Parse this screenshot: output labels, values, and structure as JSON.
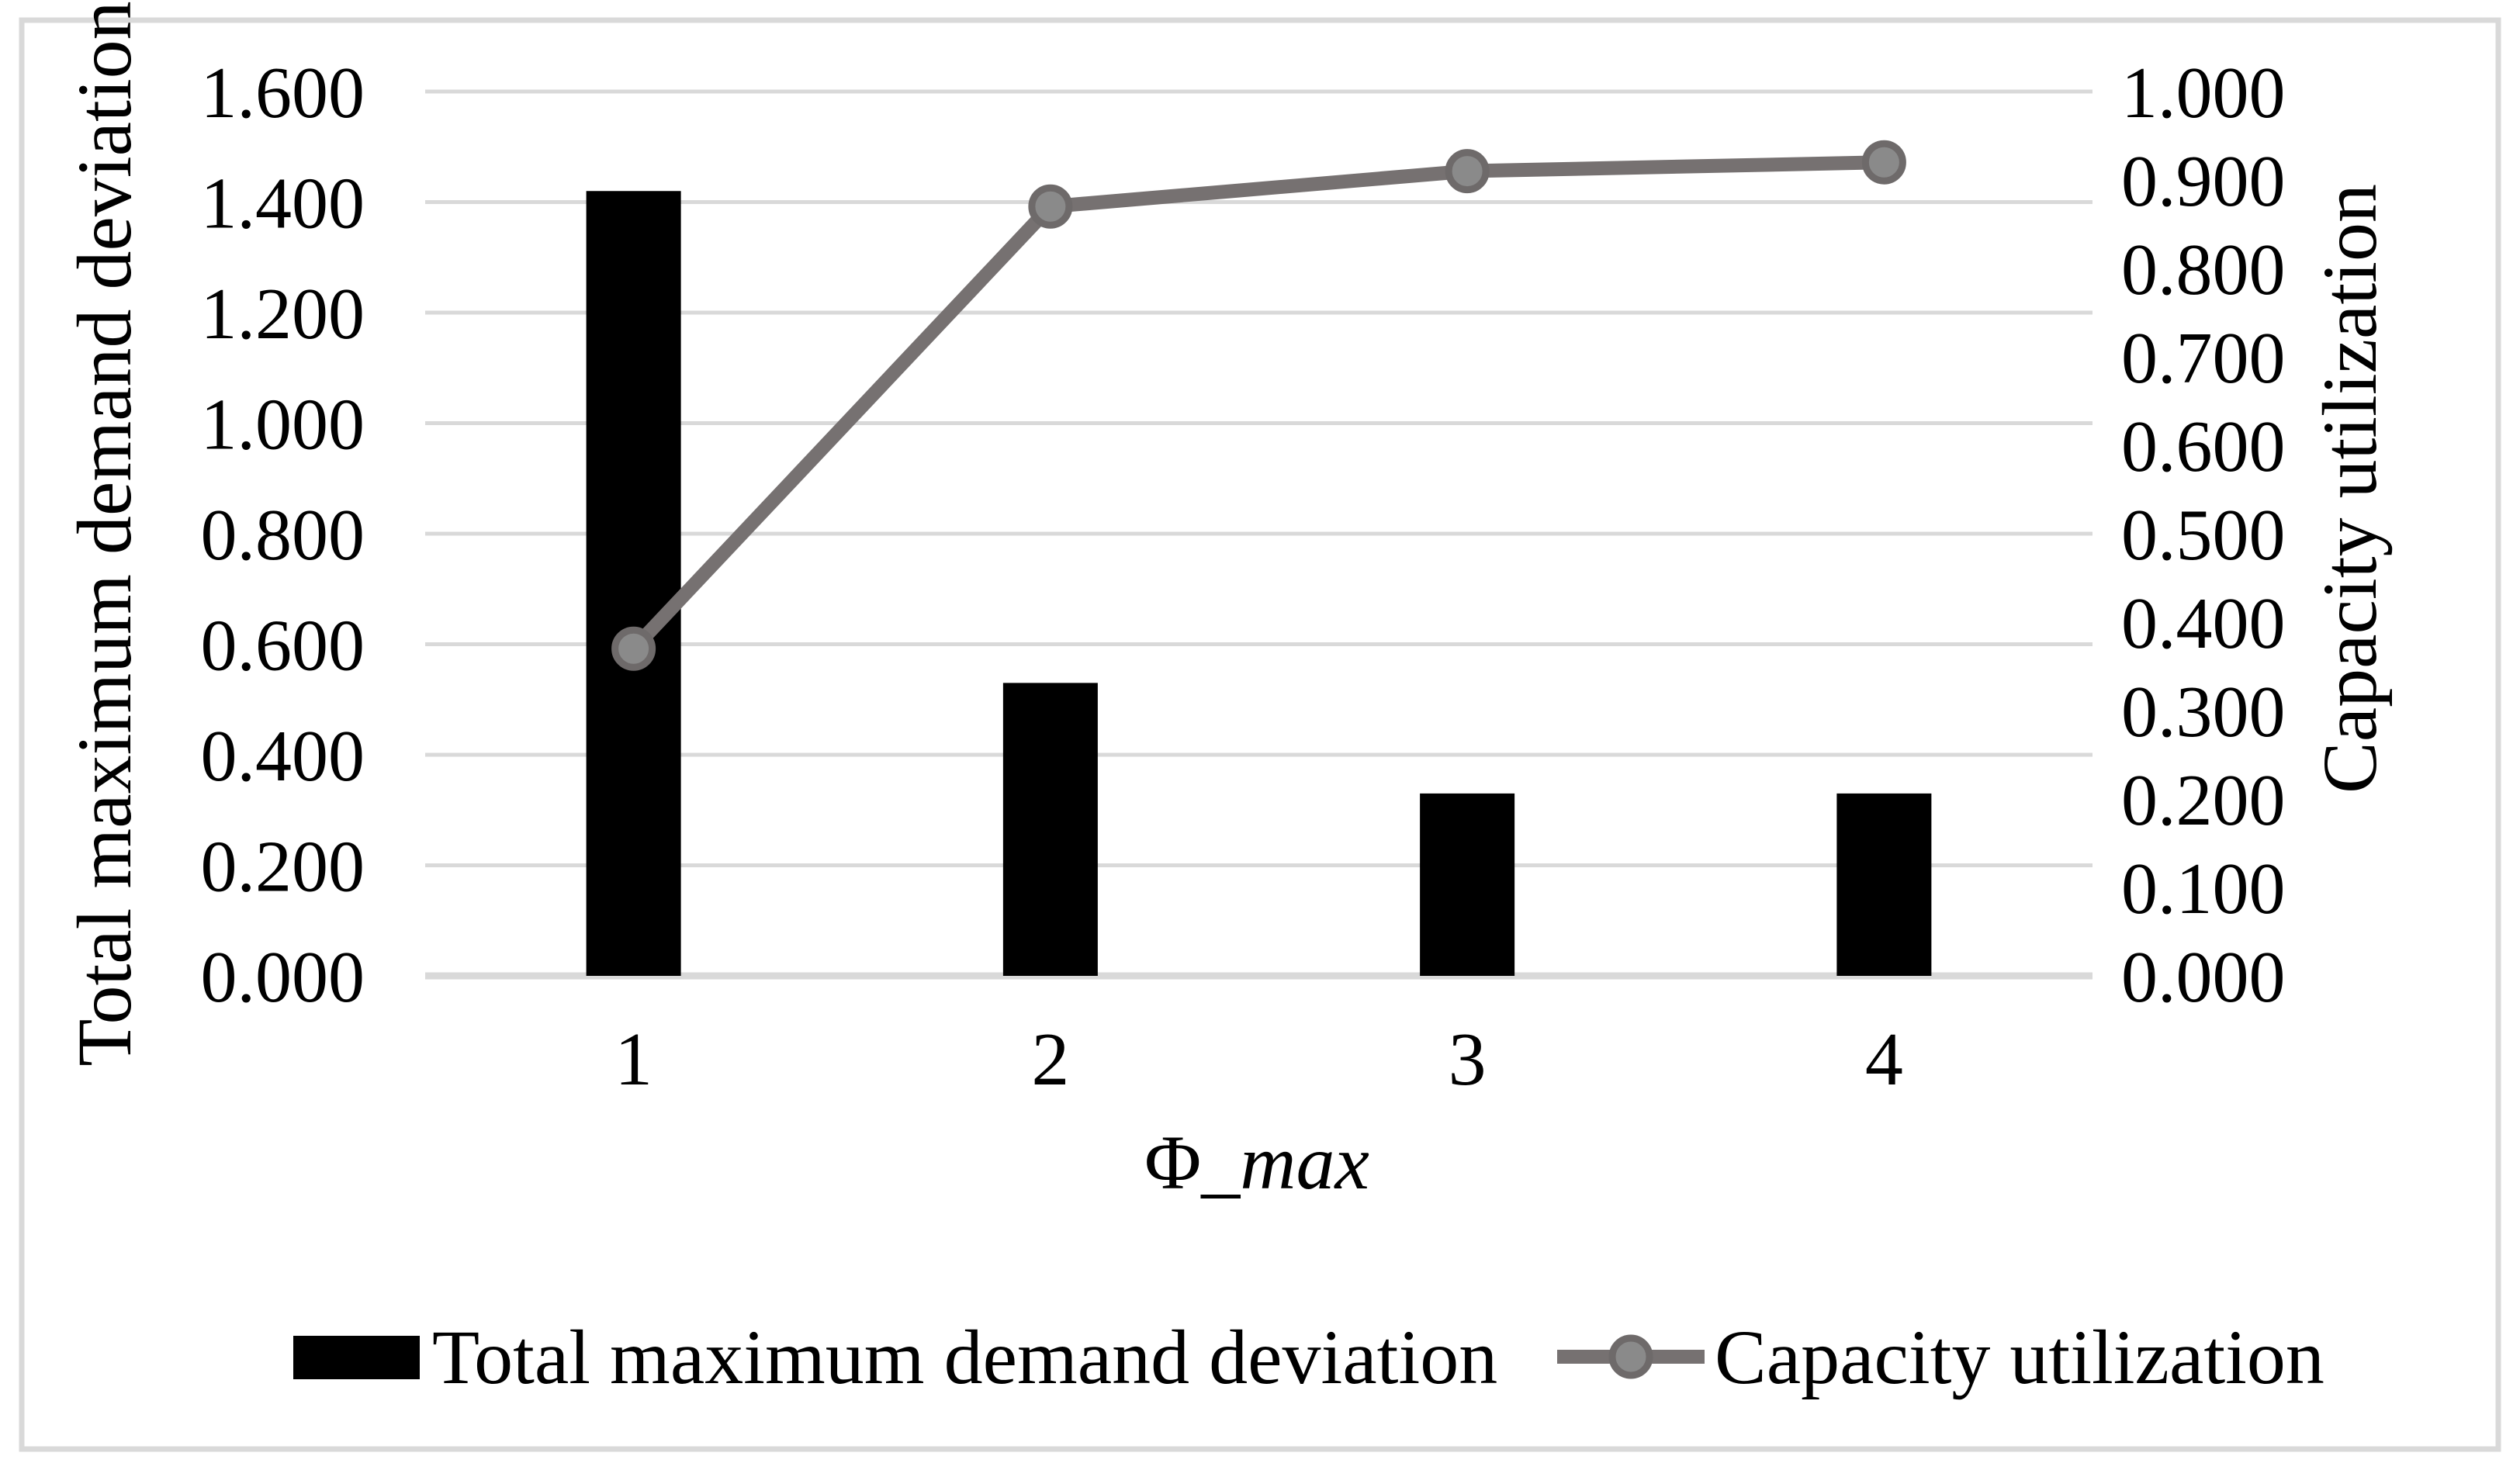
{
  "figure": {
    "background_color": "#ffffff",
    "border_color": "#d9d9d9"
  },
  "chart_data": {
    "type": "combo-bar-line",
    "categories": [
      "1",
      "2",
      "3",
      "4"
    ],
    "series": [
      {
        "name": "Total maximum demand deviation",
        "type": "bar",
        "axis": "left",
        "color": "#000000",
        "values": [
          1.42,
          0.53,
          0.33,
          0.33
        ]
      },
      {
        "name": "Capacity utilization",
        "type": "line",
        "axis": "right",
        "color": "#767171",
        "marker_fill": "#8a8a8a",
        "marker_stroke": "#6e6a6a",
        "values": [
          0.37,
          0.87,
          0.91,
          0.92
        ]
      }
    ],
    "xlabel": "Φ_max",
    "xlabel_prefix": "Φ_",
    "xlabel_italic": "max",
    "ylabel_left": "Total maximum demand deviation",
    "ylabel_right": "Capacity utilization",
    "left_axis": {
      "min": 0.0,
      "max": 1.6,
      "step": 0.2,
      "ticks": [
        "1.600",
        "1.400",
        "1.200",
        "1.000",
        "0.800",
        "0.600",
        "0.400",
        "0.200",
        "0.000"
      ]
    },
    "right_axis": {
      "min": 0.0,
      "max": 1.0,
      "step": 0.1,
      "ticks": [
        "1.000",
        "0.900",
        "0.800",
        "0.700",
        "0.600",
        "0.500",
        "0.400",
        "0.300",
        "0.200",
        "0.100",
        "0.000"
      ]
    },
    "grid": {
      "show": true,
      "color": "#d9d9d9",
      "axis_line_color": "#d9d9d9"
    },
    "legend": {
      "position": "bottom",
      "items": [
        "Total maximum demand deviation",
        "Capacity utilization"
      ]
    }
  }
}
